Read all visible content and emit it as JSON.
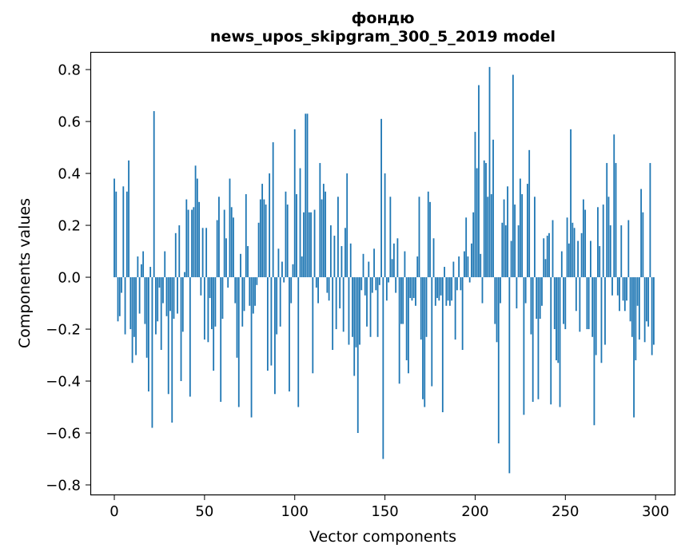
{
  "figure": {
    "title_line1": "фондю",
    "title_line2": "news_upos_skipgram_300_5_2019 model",
    "xlabel": "Vector components",
    "ylabel": "Components values",
    "background_color": "#ffffff",
    "bar_color": "#1f77b4",
    "spine_color": "#000000"
  },
  "chart_data": {
    "type": "bar",
    "title": "фондю",
    "subtitle": "news_upos_skipgram_300_5_2019 model",
    "xlabel": "Vector components",
    "ylabel": "Components values",
    "bar_color": "#1f77b4",
    "grid": false,
    "legend": null,
    "x_start": 0,
    "x_end": 299,
    "xticks": [
      0,
      50,
      100,
      150,
      200,
      250,
      300
    ],
    "yticks": [
      -0.8,
      -0.6,
      -0.4,
      -0.2,
      0.0,
      0.2,
      0.4,
      0.6,
      0.8
    ],
    "xlim": [
      -13.3,
      311.0
    ],
    "ylim": [
      -0.84,
      0.868
    ],
    "values": [
      0.38,
      0.33,
      -0.17,
      -0.15,
      -0.06,
      0.35,
      -0.22,
      0.33,
      0.45,
      -0.2,
      -0.33,
      -0.23,
      -0.3,
      0.08,
      -0.14,
      0.05,
      0.1,
      -0.18,
      -0.31,
      -0.44,
      0.04,
      -0.58,
      0.64,
      -0.22,
      -0.17,
      -0.04,
      -0.28,
      -0.1,
      0.1,
      -0.15,
      -0.45,
      -0.13,
      -0.56,
      -0.16,
      0.17,
      -0.14,
      0.2,
      -0.4,
      -0.21,
      0.02,
      0.3,
      0.26,
      -0.46,
      0.26,
      0.27,
      0.43,
      0.38,
      0.29,
      -0.07,
      0.19,
      -0.24,
      0.19,
      -0.25,
      -0.08,
      -0.2,
      -0.36,
      -0.19,
      0.22,
      0.31,
      -0.48,
      -0.16,
      0.26,
      0.15,
      -0.04,
      0.38,
      0.27,
      0.23,
      -0.1,
      -0.31,
      -0.5,
      0.09,
      -0.19,
      -0.13,
      0.32,
      0.12,
      -0.11,
      -0.54,
      -0.14,
      -0.11,
      -0.03,
      0.21,
      0.3,
      0.36,
      0.3,
      0.28,
      -0.36,
      0.4,
      -0.34,
      0.52,
      -0.45,
      -0.22,
      0.11,
      -0.19,
      0.06,
      -0.02,
      0.33,
      0.28,
      -0.44,
      -0.1,
      0.05,
      0.57,
      0.32,
      -0.5,
      0.42,
      0.08,
      0.25,
      0.63,
      0.63,
      0.25,
      0.25,
      -0.37,
      0.26,
      -0.04,
      -0.1,
      0.44,
      0.3,
      0.36,
      0.33,
      -0.06,
      -0.09,
      0.2,
      -0.28,
      0.16,
      -0.2,
      0.31,
      -0.12,
      0.12,
      -0.21,
      0.19,
      0.4,
      -0.26,
      0.13,
      -0.23,
      -0.38,
      -0.27,
      -0.6,
      -0.26,
      -0.05,
      0.09,
      -0.07,
      -0.19,
      0.06,
      -0.23,
      -0.06,
      0.11,
      -0.05,
      -0.23,
      -0.03,
      0.61,
      -0.7,
      0.4,
      -0.09,
      -0.02,
      0.31,
      0.07,
      0.13,
      -0.06,
      0.15,
      -0.41,
      -0.18,
      -0.18,
      0.1,
      -0.32,
      -0.37,
      -0.08,
      -0.09,
      -0.08,
      -0.11,
      0.08,
      0.31,
      -0.24,
      -0.47,
      -0.5,
      -0.23,
      0.33,
      0.29,
      -0.42,
      0.15,
      -0.11,
      -0.08,
      -0.09,
      -0.07,
      -0.52,
      0.04,
      -0.11,
      -0.09,
      -0.11,
      -0.09,
      0.06,
      -0.24,
      -0.05,
      0.08,
      -0.05,
      -0.28,
      0.1,
      0.23,
      0.08,
      -0.02,
      0.13,
      0.25,
      0.56,
      0.42,
      0.74,
      0.09,
      -0.1,
      0.45,
      0.44,
      0.31,
      0.81,
      0.32,
      0.53,
      -0.18,
      -0.25,
      -0.64,
      -0.1,
      0.21,
      0.3,
      0.2,
      0.35,
      -0.755,
      0.14,
      0.78,
      0.28,
      -0.12,
      0.2,
      0.38,
      0.32,
      -0.53,
      -0.1,
      0.36,
      0.49,
      -0.22,
      -0.48,
      0.31,
      -0.16,
      -0.47,
      -0.16,
      -0.11,
      0.15,
      0.07,
      0.16,
      0.17,
      -0.49,
      0.22,
      -0.2,
      -0.32,
      -0.33,
      -0.5,
      0.1,
      -0.18,
      -0.2,
      0.23,
      0.13,
      0.57,
      0.21,
      0.19,
      -0.13,
      0.14,
      -0.21,
      0.17,
      0.3,
      0.26,
      -0.2,
      -0.2,
      0.14,
      -0.23,
      -0.57,
      -0.3,
      0.27,
      0.12,
      -0.33,
      0.28,
      -0.26,
      0.44,
      0.31,
      0.2,
      -0.07,
      0.55,
      0.44,
      -0.07,
      -0.13,
      0.2,
      -0.09,
      -0.13,
      -0.09,
      0.22,
      -0.17,
      -0.23,
      -0.54,
      -0.32,
      -0.11,
      -0.24,
      0.34,
      0.25,
      -0.25,
      -0.17,
      -0.19,
      0.44,
      -0.3,
      -0.26
    ]
  }
}
